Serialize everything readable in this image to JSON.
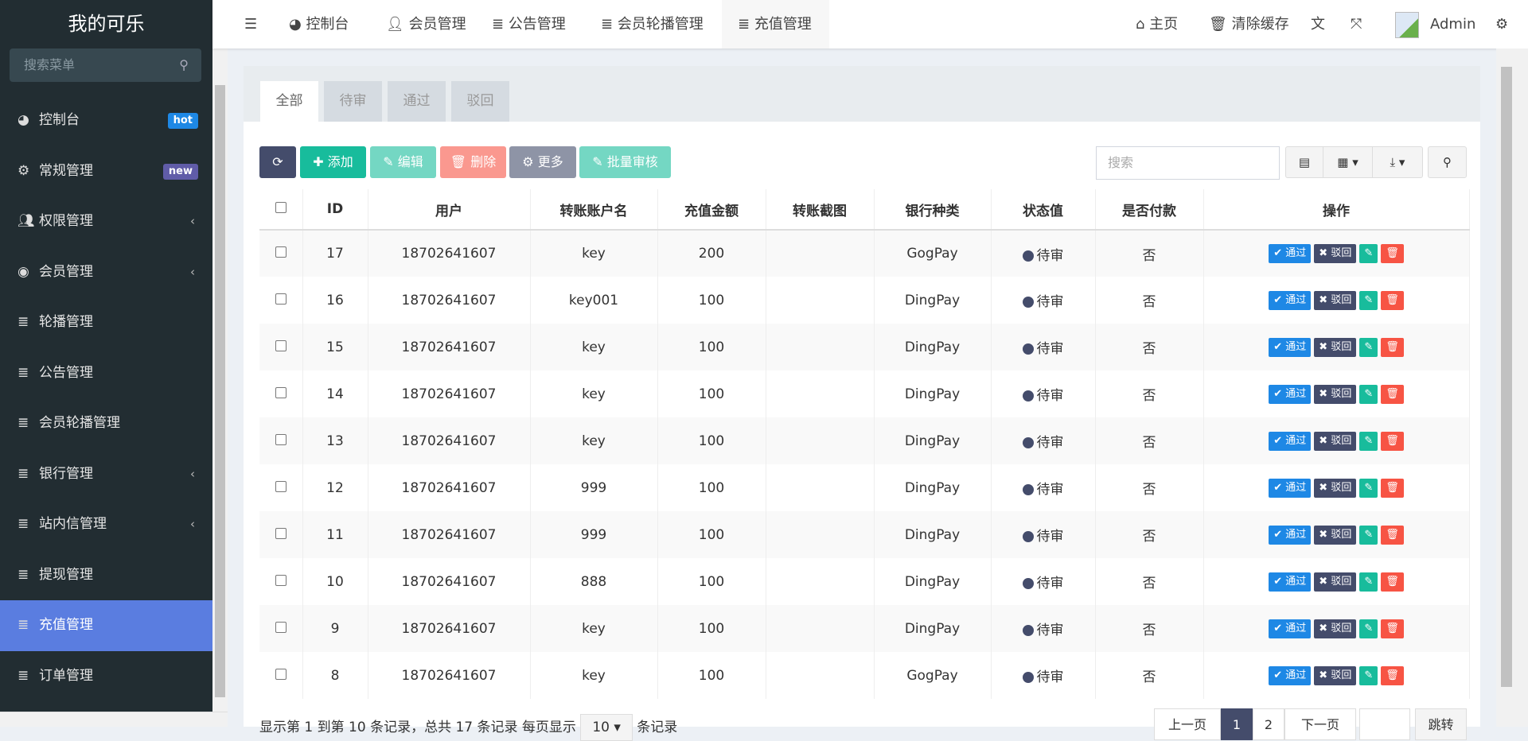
{
  "app": {
    "title": "我的可乐"
  },
  "sidebar": {
    "search_placeholder": "搜索菜单",
    "items": [
      {
        "label": "控制台",
        "icon": "dashboard-icon",
        "badge": "hot",
        "badge_color": "#1e88e5"
      },
      {
        "label": "常规管理",
        "icon": "cogs-icon",
        "badge": "new",
        "badge_color": "#605ca8"
      },
      {
        "label": "权限管理",
        "icon": "users-icon",
        "chevron": true
      },
      {
        "label": "会员管理",
        "icon": "user-circle-icon",
        "chevron": true
      },
      {
        "label": "轮播管理",
        "icon": "list-icon"
      },
      {
        "label": "公告管理",
        "icon": "list-icon"
      },
      {
        "label": "会员轮播管理",
        "icon": "list-icon"
      },
      {
        "label": "银行管理",
        "icon": "list-icon",
        "chevron": true
      },
      {
        "label": "站内信管理",
        "icon": "list-icon",
        "chevron": true
      },
      {
        "label": "提现管理",
        "icon": "list-icon"
      },
      {
        "label": "充值管理",
        "icon": "list-icon",
        "active": true
      },
      {
        "label": "订单管理",
        "icon": "list-icon"
      }
    ]
  },
  "header": {
    "tabs": [
      "控制台",
      "会员管理",
      "公告管理",
      "会员轮播管理",
      "充值管理"
    ],
    "home": "主页",
    "clear_cache": "清除缓存",
    "user": "Admin"
  },
  "content": {
    "tabs": [
      "全部",
      "待审",
      "通过",
      "驳回"
    ],
    "toolbar": {
      "add": "添加",
      "edit": "编辑",
      "delete": "删除",
      "more": "更多",
      "batch": "批量审核",
      "search_placeholder": "搜索"
    },
    "columns": [
      "ID",
      "用户",
      "转账账户名",
      "充值金额",
      "转账截图",
      "银行种类",
      "状态值",
      "是否付款",
      "操作"
    ],
    "rows": [
      [
        "17",
        "18702641607",
        "key",
        "200",
        "",
        "GogPay",
        "待审",
        "否"
      ],
      [
        "16",
        "18702641607",
        "key001",
        "100",
        "",
        "DingPay",
        "待审",
        "否"
      ],
      [
        "15",
        "18702641607",
        "key",
        "100",
        "",
        "DingPay",
        "待审",
        "否"
      ],
      [
        "14",
        "18702641607",
        "key",
        "100",
        "",
        "DingPay",
        "待审",
        "否"
      ],
      [
        "13",
        "18702641607",
        "key",
        "100",
        "",
        "DingPay",
        "待审",
        "否"
      ],
      [
        "12",
        "18702641607",
        "999",
        "100",
        "",
        "DingPay",
        "待审",
        "否"
      ],
      [
        "11",
        "18702641607",
        "999",
        "100",
        "",
        "DingPay",
        "待审",
        "否"
      ],
      [
        "10",
        "18702641607",
        "888",
        "100",
        "",
        "DingPay",
        "待审",
        "否"
      ],
      [
        "9",
        "18702641607",
        "key",
        "100",
        "",
        "DingPay",
        "待审",
        "否"
      ],
      [
        "8",
        "18702641607",
        "key",
        "100",
        "",
        "GogPay",
        "待审",
        "否"
      ]
    ],
    "row_actions": {
      "approve": "通过",
      "reject": "驳回"
    },
    "footer": {
      "text": "显示第 1 到第 10 条记录，总共 17 条记录 每页显示",
      "page_size": "10",
      "suffix": "条记录"
    },
    "pagination": {
      "prev": "上一页",
      "pages": [
        "1",
        "2"
      ],
      "current": "1",
      "next": "下一页",
      "jump": "跳转"
    }
  },
  "colors": {
    "active": "#5a7de0",
    "primary": "#444c6b",
    "success": "#18bc9c",
    "danger": "#f75444",
    "info": "#1e88e5"
  }
}
